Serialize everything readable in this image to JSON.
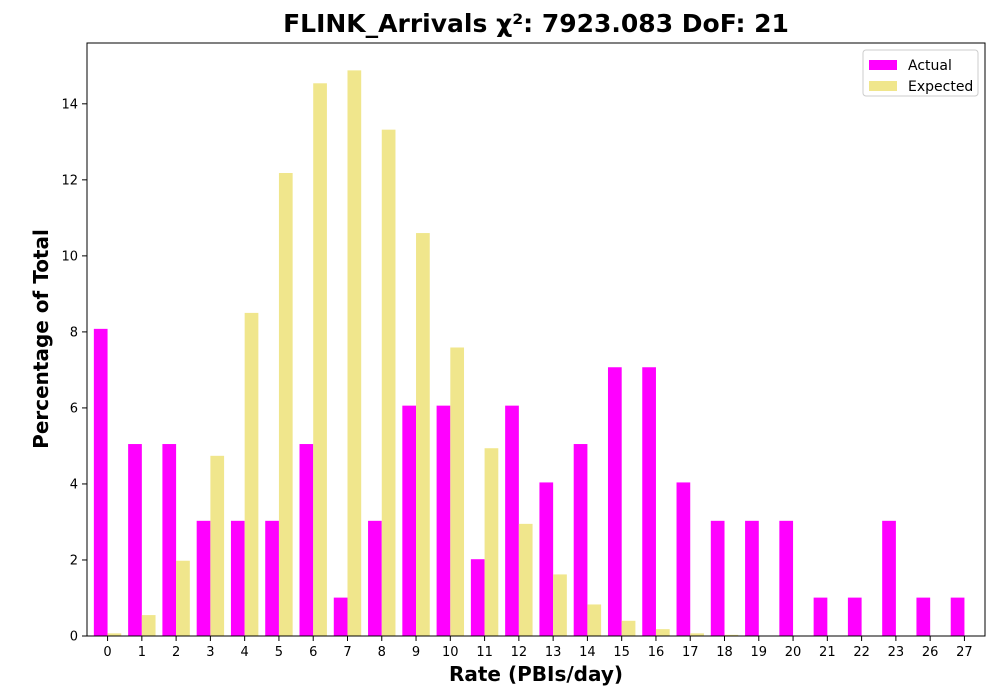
{
  "chart_data": {
    "type": "bar",
    "title": "FLINK_Arrivals χ²: 7923.083 DoF: 21",
    "xlabel": "Rate (PBIs/day)",
    "ylabel": "Percentage of Total",
    "categories": [
      "0",
      "1",
      "2",
      "3",
      "4",
      "5",
      "6",
      "7",
      "8",
      "9",
      "10",
      "11",
      "12",
      "13",
      "14",
      "15",
      "16",
      "17",
      "18",
      "19",
      "20",
      "21",
      "22",
      "23",
      "26",
      "27"
    ],
    "series": [
      {
        "name": "Actual",
        "color": "#ff00ff",
        "values": [
          8.08,
          5.05,
          5.05,
          3.03,
          3.03,
          3.03,
          5.05,
          1.01,
          3.03,
          6.06,
          6.06,
          2.02,
          6.06,
          4.04,
          5.05,
          7.07,
          7.07,
          4.04,
          3.03,
          3.03,
          3.03,
          1.01,
          1.01,
          3.03,
          1.01,
          1.01
        ]
      },
      {
        "name": "Expected",
        "color": "#f0e68c",
        "values": [
          0.07,
          0.55,
          1.98,
          4.74,
          8.5,
          12.18,
          14.54,
          14.88,
          13.32,
          10.6,
          7.59,
          4.94,
          2.95,
          1.62,
          0.83,
          0.4,
          0.18,
          0.07,
          0.03,
          0.01,
          0.0,
          0.0,
          0.0,
          0.0,
          0.0,
          0.0
        ]
      }
    ],
    "ylim": [
      0,
      15.6
    ],
    "yticks": [
      0,
      2,
      4,
      6,
      8,
      10,
      12,
      14
    ],
    "legend_position": "top-right",
    "grid": false
  }
}
